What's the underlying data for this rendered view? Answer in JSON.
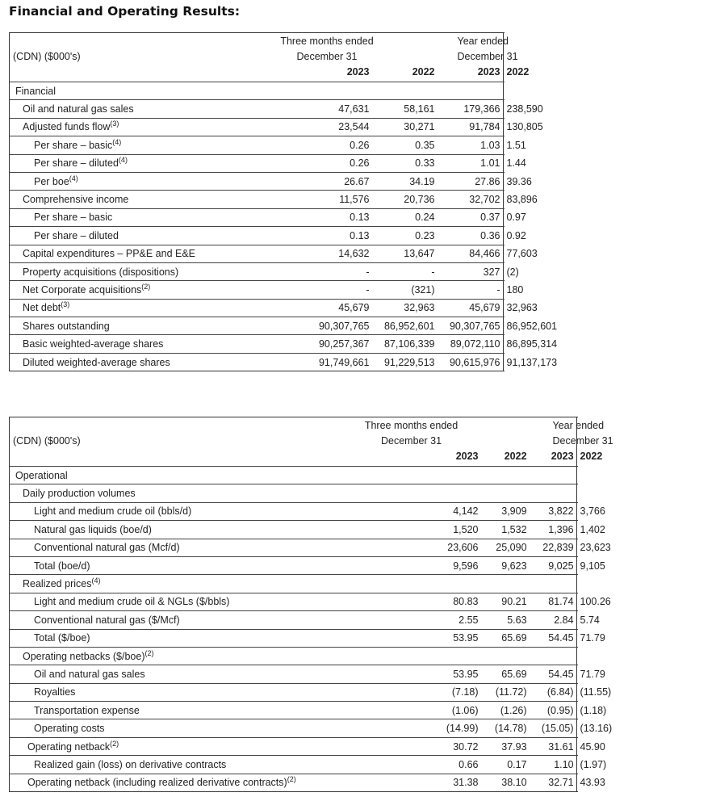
{
  "title": "Financial and Operating Results:",
  "table1": {
    "unit_label": "(CDN) ($000's)",
    "group1": [
      "Three months ended",
      "December 31"
    ],
    "group2": [
      "Year ended",
      "December 31"
    ],
    "years": [
      "2023",
      "2022",
      "2023",
      "2022"
    ],
    "rows": [
      {
        "label": "Financial",
        "indent": 0,
        "values": [
          "",
          "",
          "",
          ""
        ]
      },
      {
        "label": "Oil and natural gas sales",
        "indent": 1,
        "values": [
          "47,631",
          "58,161",
          "179,366",
          "238,590"
        ]
      },
      {
        "label": "Adjusted funds flow",
        "sup": "(3)",
        "indent": 1,
        "values": [
          "23,544",
          "30,271",
          "91,784",
          "130,805"
        ]
      },
      {
        "label": "Per share – basic",
        "sup": "(4)",
        "indent": 2,
        "values": [
          "0.26",
          "0.35",
          "1.03",
          "1.51"
        ]
      },
      {
        "label": "Per share – diluted",
        "sup": "(4)",
        "indent": 2,
        "values": [
          "0.26",
          "0.33",
          "1.01",
          "1.44"
        ]
      },
      {
        "label": "Per boe",
        "sup": "(4)",
        "indent": 2,
        "values": [
          "26.67",
          "34.19",
          "27.86",
          "39.36"
        ]
      },
      {
        "label": "Comprehensive income",
        "indent": 1,
        "values": [
          "11,576",
          "20,736",
          "32,702",
          "83,896"
        ]
      },
      {
        "label": "Per share – basic",
        "indent": 2,
        "values": [
          "0.13",
          "0.24",
          "0.37",
          "0.97"
        ]
      },
      {
        "label": "Per share – diluted",
        "indent": 2,
        "values": [
          "0.13",
          "0.23",
          "0.36",
          "0.92"
        ]
      },
      {
        "label": "Capital expenditures – PP&E and E&E",
        "indent": 1,
        "values": [
          "14,632",
          "13,647",
          "84,466",
          "77,603"
        ]
      },
      {
        "label": "Property acquisitions (dispositions)",
        "indent": 1,
        "values": [
          "-",
          "-",
          "327",
          "(2)"
        ]
      },
      {
        "label": "Net Corporate acquisitions",
        "sup": "(2)",
        "indent": 1,
        "values": [
          "-",
          "(321)",
          "-",
          "180"
        ]
      },
      {
        "label": "Net debt",
        "sup": "(3)",
        "indent": 1,
        "values": [
          "45,679",
          "32,963",
          "45,679",
          "32,963"
        ]
      },
      {
        "label": "Shares outstanding",
        "indent": 1,
        "values": [
          "90,307,765",
          "86,952,601",
          "90,307,765",
          "86,952,601"
        ]
      },
      {
        "label": "Basic weighted-average shares",
        "indent": 1,
        "values": [
          "90,257,367",
          "87,106,339",
          "89,072,110",
          "86,895,314"
        ]
      },
      {
        "label": "Diluted weighted-average shares",
        "indent": 1,
        "values": [
          "91,749,661",
          "91,229,513",
          "90,615,976",
          "91,137,173"
        ]
      }
    ]
  },
  "table2": {
    "unit_label": "(CDN) ($000's)",
    "group1": [
      "Three months ended",
      "December 31"
    ],
    "group2": [
      "Year ended",
      "December 31"
    ],
    "years": [
      "2023",
      "2022",
      "2023",
      "2022"
    ],
    "rows": [
      {
        "label": "Operational",
        "indent": 0,
        "values": [
          "",
          "",
          "",
          ""
        ]
      },
      {
        "label": "Daily production volumes",
        "indent": 1,
        "values": [
          "",
          "",
          "",
          ""
        ]
      },
      {
        "label": "Light and medium crude oil (bbls/d)",
        "indent": 2,
        "values": [
          "4,142",
          "3,909",
          "3,822",
          "3,766"
        ]
      },
      {
        "label": "Natural gas liquids (boe/d)",
        "indent": 2,
        "values": [
          "1,520",
          "1,532",
          "1,396",
          "1,402"
        ]
      },
      {
        "label": "Conventional natural gas (Mcf/d)",
        "indent": 2,
        "values": [
          "23,606",
          "25,090",
          "22,839",
          "23,623"
        ]
      },
      {
        "label": "Total (boe/d)",
        "indent": 2,
        "values": [
          "9,596",
          "9,623",
          "9,025",
          "9,105"
        ]
      },
      {
        "label": "Realized prices",
        "sup": "(4)",
        "indent": 1,
        "values": [
          "",
          "",
          "",
          ""
        ]
      },
      {
        "label": "Light and medium crude oil & NGLs ($/bbls)",
        "indent": 2,
        "values": [
          "80.83",
          "90.21",
          "81.74",
          "100.26"
        ]
      },
      {
        "label": "Conventional natural gas ($/Mcf)",
        "indent": 2,
        "values": [
          "2.55",
          "5.63",
          "2.84",
          "5.74"
        ]
      },
      {
        "label": "Total ($/boe)",
        "indent": 2,
        "values": [
          "53.95",
          "65.69",
          "54.45",
          "71.79"
        ]
      },
      {
        "label": "Operating netbacks ($/boe)",
        "sup": "(2)",
        "indent": 1,
        "values": [
          "",
          "",
          "",
          ""
        ]
      },
      {
        "label": "Oil and natural gas sales",
        "indent": 2,
        "values": [
          "53.95",
          "65.69",
          "54.45",
          "71.79"
        ]
      },
      {
        "label": "Royalties",
        "indent": 2,
        "values": [
          "(7.18)",
          "(11.72)",
          "(6.84)",
          "(11.55)"
        ]
      },
      {
        "label": "Transportation expense",
        "indent": 2,
        "values": [
          "(1.06)",
          "(1.26)",
          "(0.95)",
          "(1.18)"
        ]
      },
      {
        "label": "Operating costs",
        "indent": 2,
        "values": [
          "(14.99)",
          "(14.78)",
          "(15.05)",
          "(13.16)"
        ]
      },
      {
        "label": "Operating netback",
        "sup": "(2)",
        "indent": 1.5,
        "values": [
          "30.72",
          "37.93",
          "31.61",
          "45.90"
        ]
      },
      {
        "label": "Realized gain (loss) on derivative contracts",
        "indent": 2,
        "values": [
          "0.66",
          "0.17",
          "1.10",
          "(1.97)"
        ]
      },
      {
        "label": "Operating netback (including realized derivative contracts)",
        "sup": "(2)",
        "indent": 1.5,
        "values": [
          "31.38",
          "38.10",
          "32.71",
          "43.93"
        ]
      }
    ]
  }
}
